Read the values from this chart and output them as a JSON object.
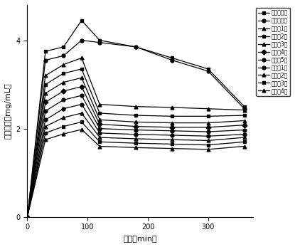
{
  "x": [
    0,
    30,
    60,
    90,
    120,
    180,
    240,
    300,
    360
  ],
  "series": [
    {
      "label": "模型对照组",
      "values": [
        0,
        3.75,
        3.85,
        4.45,
        4.0,
        3.85,
        3.6,
        3.35,
        2.5
      ],
      "marker": "s",
      "color": "#000000"
    },
    {
      "label": "阳性对照组",
      "values": [
        0,
        3.55,
        3.65,
        4.0,
        3.95,
        3.85,
        3.55,
        3.3,
        2.45
      ],
      "marker": "o",
      "color": "#000000"
    },
    {
      "label": "实施例1组",
      "values": [
        0,
        3.2,
        3.45,
        3.6,
        2.55,
        2.5,
        2.48,
        2.45,
        2.42
      ],
      "marker": "^",
      "color": "#000000"
    },
    {
      "label": "实施例2组",
      "values": [
        0,
        3.0,
        3.25,
        3.35,
        2.35,
        2.3,
        2.28,
        2.28,
        2.3
      ],
      "marker": "s",
      "color": "#000000"
    },
    {
      "label": "实施例3组",
      "values": [
        0,
        2.8,
        3.05,
        3.15,
        2.2,
        2.15,
        2.13,
        2.13,
        2.18
      ],
      "marker": "^",
      "color": "#000000"
    },
    {
      "label": "实施例4组",
      "values": [
        0,
        2.6,
        2.85,
        2.95,
        2.1,
        2.05,
        2.03,
        2.03,
        2.08
      ],
      "marker": "D",
      "color": "#000000"
    },
    {
      "label": "实施例5组",
      "values": [
        0,
        2.4,
        2.65,
        2.75,
        2.0,
        1.97,
        1.95,
        1.93,
        1.97
      ],
      "marker": "o",
      "color": "#000000"
    },
    {
      "label": "对比例1组",
      "values": [
        0,
        2.2,
        2.45,
        2.55,
        1.9,
        1.87,
        1.85,
        1.83,
        1.87
      ],
      "marker": "o",
      "color": "#000000"
    },
    {
      "label": "对比例2组",
      "values": [
        0,
        2.05,
        2.25,
        2.35,
        1.8,
        1.77,
        1.75,
        1.73,
        1.8
      ],
      "marker": "^",
      "color": "#000000"
    },
    {
      "label": "对比例3组",
      "values": [
        0,
        1.9,
        2.05,
        2.15,
        1.7,
        1.67,
        1.65,
        1.63,
        1.7
      ],
      "marker": "s",
      "color": "#000000"
    },
    {
      "label": "对比例4组",
      "values": [
        0,
        1.75,
        1.88,
        1.98,
        1.6,
        1.57,
        1.55,
        1.53,
        1.6
      ],
      "marker": "^",
      "color": "#000000"
    }
  ],
  "xlabel": "时间（min）",
  "ylabel": "乙醇浓度（mg/mL）",
  "xlim": [
    0,
    375
  ],
  "ylim": [
    0,
    4.8
  ],
  "xticks": [
    0,
    100,
    200,
    300
  ],
  "yticks": [
    0,
    2,
    4
  ],
  "markersize": 3.5,
  "linewidth": 0.9,
  "legend_fontsize": 5.5,
  "axis_fontsize": 8,
  "tick_fontsize": 7,
  "background_color": "#ffffff"
}
